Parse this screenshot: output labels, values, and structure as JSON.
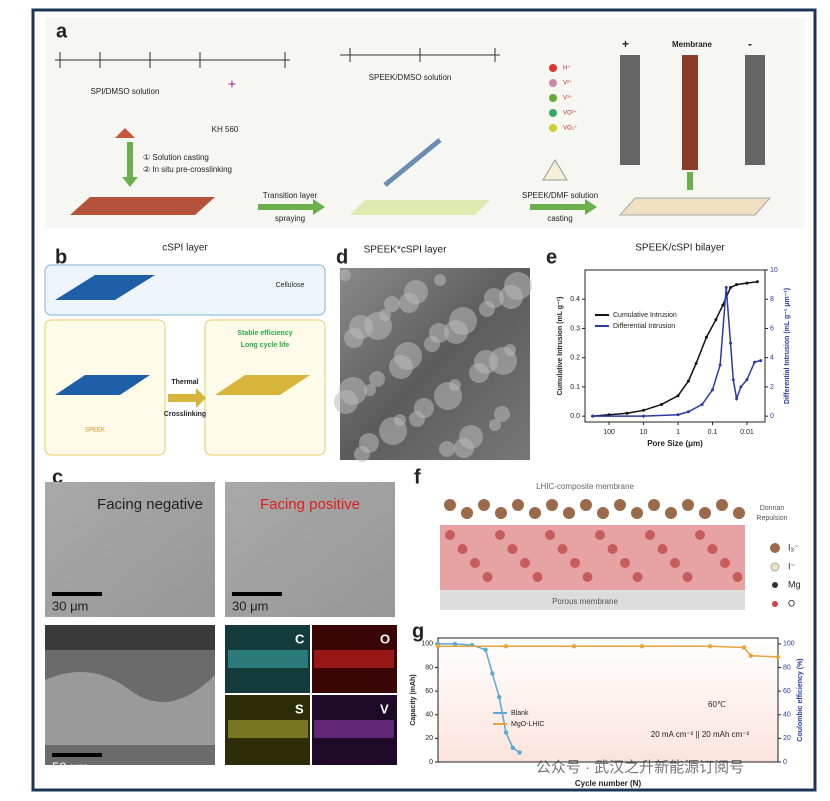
{
  "panel_a": {
    "label": "a",
    "spi_solution": "SPI/DMSO solution",
    "reagent_plus": "+",
    "kh": "KH 560",
    "speek_dmso": "SPEEK/DMSO solution",
    "steps": [
      "① Solution casting",
      "② In situ pre-crosslinking"
    ],
    "transition": [
      "Transition layer",
      "spraying"
    ],
    "speek_dmf": [
      "SPEEK/DMF solution",
      "casting"
    ],
    "ions": [
      "H⁺",
      "V²⁺",
      "V³⁺",
      "VO²⁺",
      "VO₂⁺"
    ],
    "membrane": "Membrane",
    "plus": "+",
    "minus": "-"
  },
  "panel_b": {
    "label": "b",
    "title": "cSPI layer",
    "cellulose": "Cellulose",
    "arrow": [
      "Thermal",
      "Crosslinking"
    ],
    "benefits": [
      "Stable efficiency",
      "Long cycle life"
    ],
    "speek": "SPEEK"
  },
  "panel_d": {
    "label": "d",
    "title": "SPEEK*cSPI layer"
  },
  "panel_e": {
    "label": "e",
    "title": "SPEEK/cSPI bilayer",
    "chart": {
      "type": "line",
      "xlabel": "Pore Size (μm)",
      "ylabel": "Cumulative Intrusion (mL g⁻¹)",
      "y2label": "Differential Intrusion (mL g⁻¹ μm⁻¹)",
      "xlog": true,
      "xlim": [
        500,
        0.003
      ],
      "xticks": [
        100,
        10,
        1,
        0.1,
        0.01
      ],
      "ylim": [
        -0.02,
        0.5
      ],
      "yticks": [
        {
          "value": 0,
          "label": "0.0"
        },
        0.1,
        0.2,
        0.3,
        0.4
      ],
      "y2lim": [
        -0.4,
        10
      ],
      "y2ticks": [
        0,
        2,
        4,
        6,
        8,
        10
      ],
      "legend": "upper left",
      "series": [
        {
          "name": "Cumulative Intrusion",
          "color": "#111111",
          "x": [
            300,
            100,
            30,
            10,
            3,
            1,
            0.5,
            0.3,
            0.15,
            0.08,
            0.05,
            0.03,
            0.02,
            0.01,
            0.005
          ],
          "values": [
            0,
            0.005,
            0.01,
            0.02,
            0.04,
            0.07,
            0.12,
            0.18,
            0.27,
            0.33,
            0.38,
            0.44,
            0.45,
            0.455,
            0.46
          ]
        },
        {
          "name": "Differential Intrusion",
          "color": "#2a3aa8",
          "axis": "y2",
          "x": [
            300,
            10,
            1,
            0.5,
            0.2,
            0.1,
            0.06,
            0.04,
            0.03,
            0.025,
            0.02,
            0.015,
            0.01,
            0.006,
            0.004
          ],
          "values": [
            0,
            0,
            0.1,
            0.3,
            0.8,
            1.8,
            3.5,
            8.8,
            5,
            2.5,
            1.2,
            2,
            2.5,
            3.7,
            3.8
          ]
        }
      ]
    }
  },
  "panel_c": {
    "label": "c",
    "images": [
      "Facing negative",
      "Facing positive"
    ],
    "scalebars": [
      "30 μm",
      "30 μm",
      "50 μm"
    ],
    "elements": [
      "C",
      "O",
      "S",
      "V"
    ]
  },
  "panel_f": {
    "label": "f",
    "title": "LHIC-composite membrane",
    "repulsion": [
      "Donnan",
      "Repulsion"
    ],
    "legend": [
      "I₃⁻",
      "I⁻",
      "Mg",
      "O"
    ],
    "support": "Porous membrane"
  },
  "panel_g": {
    "label": "g",
    "chart": {
      "type": "line",
      "xlabel": "Cycle number (N)",
      "ylabel": "Capacity (mAh)",
      "y2label": "Coulombic efficiency (%)",
      "xlim": [
        0,
        100
      ],
      "ylim": [
        0,
        105
      ],
      "yticks": [
        0,
        20,
        40,
        60,
        80,
        100
      ],
      "y2lim": [
        0,
        105
      ],
      "y2ticks": [
        0,
        20,
        40,
        60,
        80,
        100
      ],
      "legend": "center left",
      "series": [
        {
          "name": "Blank",
          "color": "#5aa9d6",
          "x": [
            0,
            5,
            10,
            14,
            16,
            18,
            20,
            22,
            24
          ],
          "values": [
            100,
            100,
            99,
            95,
            75,
            55,
            25,
            12,
            8
          ]
        },
        {
          "name": "MgO-LHIC",
          "color": "#e8a33c",
          "x": [
            0,
            20,
            40,
            60,
            80,
            90,
            92,
            100
          ],
          "values": [
            98,
            98,
            98,
            98,
            98,
            97,
            90,
            89
          ]
        }
      ]
    },
    "temperature": "60℃",
    "condition": "20 mA cm⁻² || 20 mAh cm⁻²",
    "watermark": "公众号 · 武汉之升新能源订阅号"
  }
}
